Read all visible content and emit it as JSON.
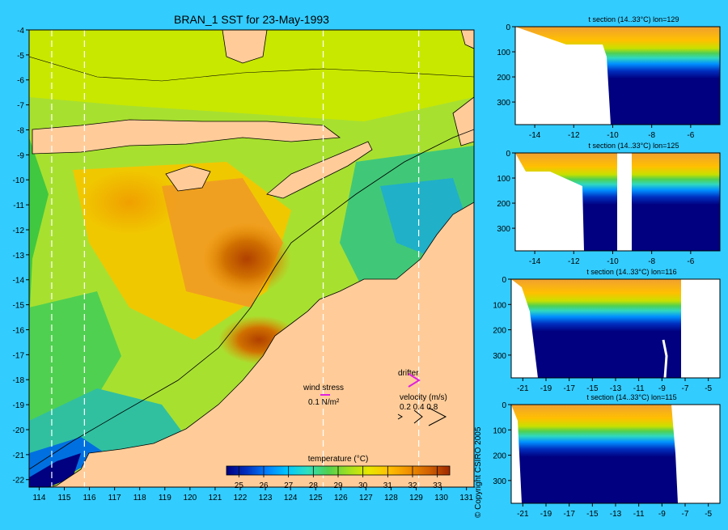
{
  "main_map": {
    "title": "BRAN_1 SST for 23-May-1993",
    "x_ticks": [
      "114",
      "115",
      "116",
      "117",
      "118",
      "119",
      "120",
      "121",
      "122",
      "123",
      "124",
      "125",
      "126",
      "127",
      "128",
      "129",
      "130",
      "131"
    ],
    "y_ticks": [
      "-4",
      "-5",
      "-6",
      "-7",
      "-8",
      "-9",
      "-10",
      "-11",
      "-12",
      "-13",
      "-14",
      "-15",
      "-16",
      "-17",
      "-18",
      "-19",
      "-20",
      "-21",
      "-22"
    ],
    "section_lons": [
      114.5,
      115.8,
      125.3,
      129.1
    ],
    "wind_stress_label": "wind stress",
    "wind_stress_value": "0.1 N/m²",
    "drifter_label": "drifter",
    "velocity_label": "velocity (m/s)",
    "velocity_values": "0.2 0.4 0.8",
    "colorbar": {
      "title": "temperature (°C)",
      "ticks": [
        "25",
        "26",
        "27",
        "28",
        "29",
        "30",
        "31",
        "32",
        "33"
      ],
      "colors": [
        "#000080",
        "#0030c0",
        "#0080ff",
        "#00c8ff",
        "#30e0c0",
        "#50d050",
        "#a0e020",
        "#e8e800",
        "#ffc000",
        "#f09000",
        "#d06000",
        "#a02800"
      ]
    }
  },
  "sections": [
    {
      "title": "t section (14..33°C) lon=129",
      "y_ticks": [
        "0",
        "100",
        "200",
        "300"
      ],
      "x_ticks": [
        "-14",
        "-12",
        "-10",
        "-8",
        "-6"
      ]
    },
    {
      "title": "t section (14..33°C) lon=125",
      "y_ticks": [
        "0",
        "100",
        "200",
        "300"
      ],
      "x_ticks": [
        "-14",
        "-12",
        "-10",
        "-8",
        "-6"
      ]
    },
    {
      "title": "t section (14..33°C) lon=116",
      "y_ticks": [
        "0",
        "100",
        "200",
        "300"
      ],
      "x_ticks": [
        "-21",
        "-19",
        "-17",
        "-15",
        "-13",
        "-11",
        "-9",
        "-7",
        "-5"
      ]
    },
    {
      "title": "t section (14..33°C) lon=115",
      "y_ticks": [
        "0",
        "100",
        "200",
        "300"
      ],
      "x_ticks": [
        "-21",
        "-19",
        "-17",
        "-15",
        "-13",
        "-11",
        "-9",
        "-7",
        "-5"
      ]
    }
  ],
  "copyright": "© Copyright CSIRO 2005",
  "chart_data": [
    {
      "type": "heatmap",
      "title": "BRAN_1 SST for 23-May-1993",
      "xlim": [
        113.6,
        131.3
      ],
      "ylim": [
        -22.3,
        -4
      ],
      "color_range": [
        24.5,
        33.5
      ],
      "colorbar_label": "temperature (°C)"
    },
    {
      "type": "heatmap",
      "title": "t section (14..33°C) lon=129",
      "xlim": [
        -15,
        -4.5
      ],
      "ylim": [
        390,
        0
      ],
      "x_ticks": [
        -14,
        -12,
        -10,
        -8,
        -6
      ],
      "y_ticks": [
        0,
        100,
        200,
        300
      ]
    },
    {
      "type": "heatmap",
      "title": "t section (14..33°C) lon=125",
      "xlim": [
        -15,
        -4.5
      ],
      "ylim": [
        390,
        0
      ],
      "x_ticks": [
        -14,
        -12,
        -10,
        -8,
        -6
      ],
      "y_ticks": [
        0,
        100,
        200,
        300
      ]
    },
    {
      "type": "heatmap",
      "title": "t section (14..33°C) lon=116",
      "xlim": [
        -22,
        -4
      ],
      "ylim": [
        390,
        0
      ],
      "x_ticks": [
        -21,
        -19,
        -17,
        -15,
        -13,
        -11,
        -9,
        -7,
        -5
      ],
      "y_ticks": [
        0,
        100,
        200,
        300
      ]
    },
    {
      "type": "heatmap",
      "title": "t section (14..33°C) lon=115",
      "xlim": [
        -22,
        -4
      ],
      "ylim": [
        390,
        0
      ],
      "x_ticks": [
        -21,
        -19,
        -17,
        -15,
        -13,
        -11,
        -9,
        -7,
        -5
      ],
      "y_ticks": [
        0,
        100,
        200,
        300
      ]
    }
  ]
}
